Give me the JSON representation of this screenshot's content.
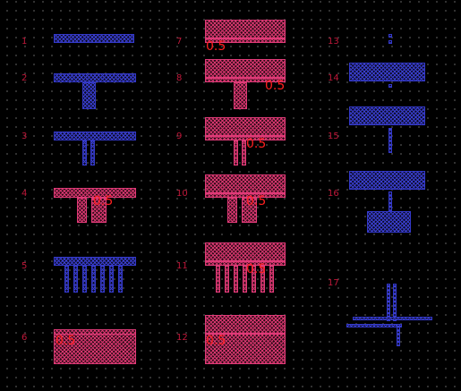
{
  "labels": {
    "l1": "1",
    "l2": "2",
    "l3": "3",
    "l4": "4",
    "l5": "5",
    "l6": "6",
    "l7": "7",
    "l8": "8",
    "l9": "9",
    "l10": "10",
    "l11": "11",
    "l12": "12",
    "l13": "13",
    "l14": "14",
    "l15": "15",
    "l16": "16",
    "l17": "17"
  },
  "dimension_text": "0.5",
  "colors": {
    "background": "#000000",
    "grid_dot": "#4a4a4a",
    "label": "#c0183a",
    "layer_blue": "#3a3fd0",
    "layer_pink": "#d8376f",
    "dimension": "#ff2020"
  }
}
